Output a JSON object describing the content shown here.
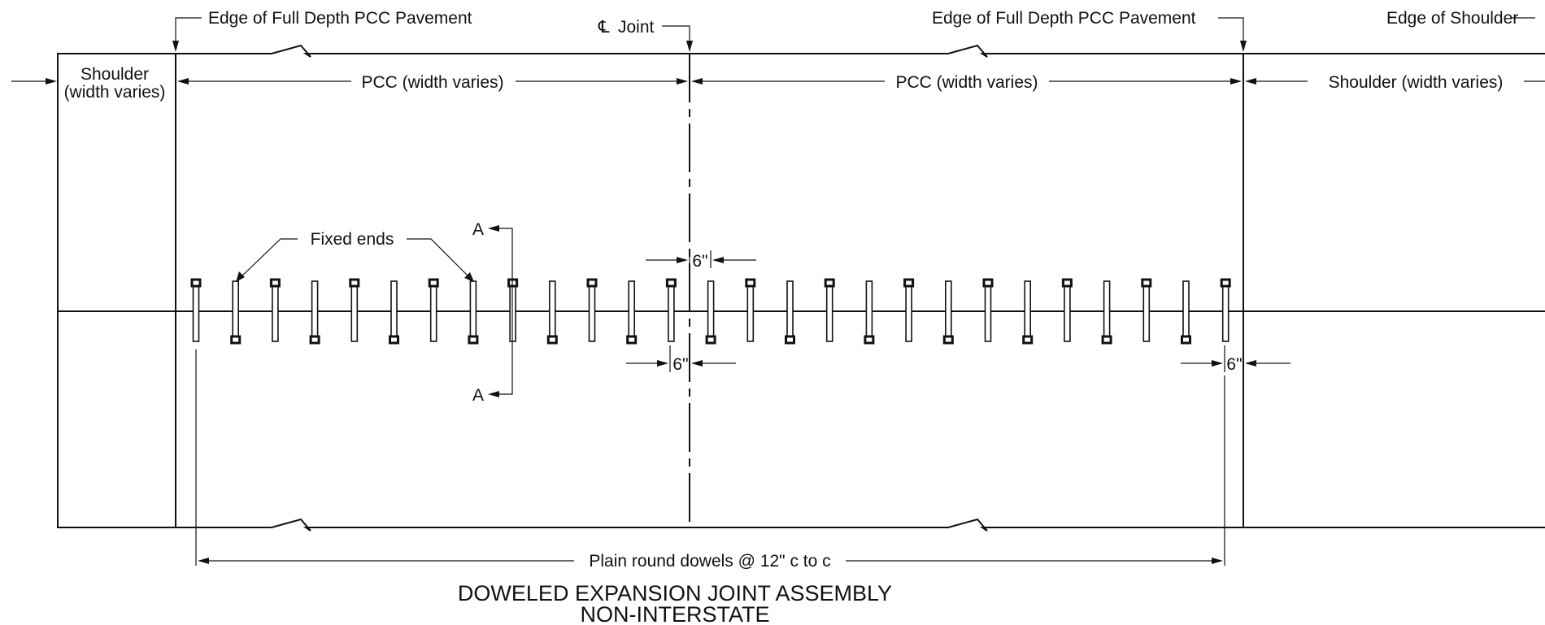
{
  "labels": {
    "edge_pcc_left": "Edge of Full Depth PCC Pavement",
    "cl_symbol": "℄",
    "cl_joint": "Joint",
    "edge_pcc_right": "Edge of Full Depth PCC Pavement",
    "edge_shoulder": "Edge of Shoulder",
    "shoulder_left_line1": "Shoulder",
    "shoulder_left_line2": "(width varies)",
    "pcc_left": "PCC (width varies)",
    "pcc_right": "PCC (width varies)",
    "shoulder_right": "Shoulder (width varies)",
    "fixed_ends": "Fixed ends",
    "section_cut_top": "A",
    "section_cut_bottom": "A",
    "dim_top_6in": "6\"",
    "dim_mid_6in": "6\"",
    "dim_right_6in": "6\"",
    "dowel_spacing": "Plain round dowels @ 12\" c to c"
  },
  "title": {
    "line1": "DOWELED EXPANSION JOINT ASSEMBLY",
    "line2": "NON-INTERSTATE"
  },
  "dowels": {
    "count": 27,
    "spacing": "12\" c to c",
    "fixed_end_pattern": [
      "top",
      "bottom",
      "top",
      "bottom",
      "top",
      "bottom",
      "top",
      "bottom",
      "top",
      "bottom",
      "top",
      "bottom",
      "top",
      "bottom",
      "top",
      "bottom",
      "top",
      "bottom",
      "top",
      "bottom",
      "top",
      "bottom",
      "top",
      "bottom",
      "top",
      "bottom",
      "top"
    ]
  }
}
